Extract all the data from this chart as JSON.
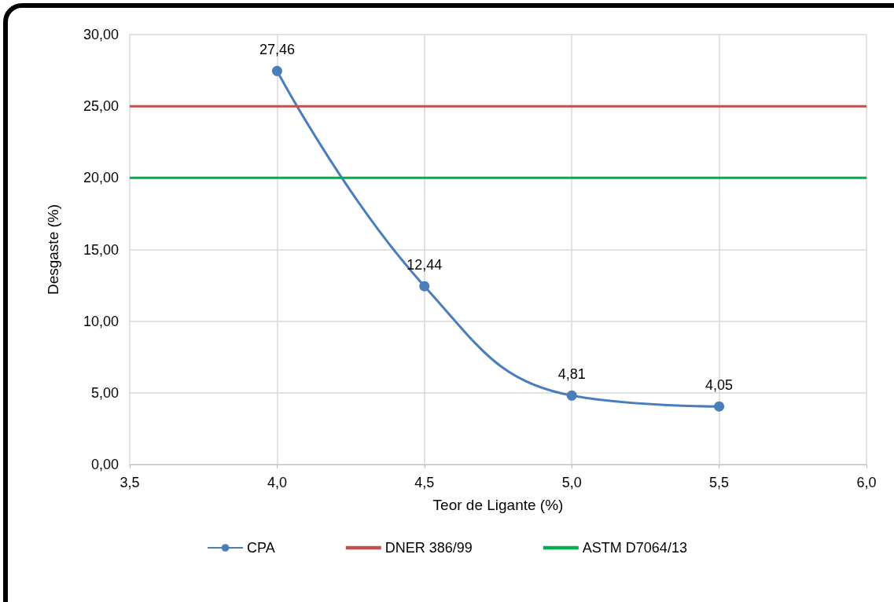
{
  "chart_data": {
    "type": "line",
    "xlabel": "Teor de Ligante (%)",
    "ylabel": "Desgaste (%)",
    "xlim": [
      3.5,
      6.0
    ],
    "xticks": [
      {
        "value": 3.5,
        "label": "3,5"
      },
      {
        "value": 4.0,
        "label": "4,0"
      },
      {
        "value": 4.5,
        "label": "4,5"
      },
      {
        "value": 5.0,
        "label": "5,0"
      },
      {
        "value": 5.5,
        "label": "5,5"
      },
      {
        "value": 6.0,
        "label": "6,0"
      }
    ],
    "ylim": [
      0,
      30
    ],
    "yticks": [
      {
        "value": 0,
        "label": "0,00"
      },
      {
        "value": 5,
        "label": "5,00"
      },
      {
        "value": 10,
        "label": "10,00"
      },
      {
        "value": 15,
        "label": "15,00"
      },
      {
        "value": 20,
        "label": "20,00"
      },
      {
        "value": 25,
        "label": "25,00"
      },
      {
        "value": 30,
        "label": "30,00"
      }
    ],
    "grid": true,
    "legend": "bottom",
    "series": [
      {
        "name": "CPA",
        "color": "#4a7ebb",
        "marker": "circle",
        "x": [
          4.0,
          4.5,
          5.0,
          5.5
        ],
        "values": [
          27.46,
          12.44,
          4.81,
          4.05
        ],
        "value_labels": [
          "27,46",
          "12,44",
          "4,81",
          "4,05"
        ]
      },
      {
        "name": "DNER 386/99",
        "color": "#c0504d",
        "marker": "none",
        "x": [
          3.5,
          6.0
        ],
        "values": [
          25,
          25
        ]
      },
      {
        "name": "ASTM D7064/13",
        "color": "#00b050",
        "marker": "none",
        "x": [
          3.5,
          6.0
        ],
        "values": [
          20,
          20
        ]
      }
    ]
  }
}
